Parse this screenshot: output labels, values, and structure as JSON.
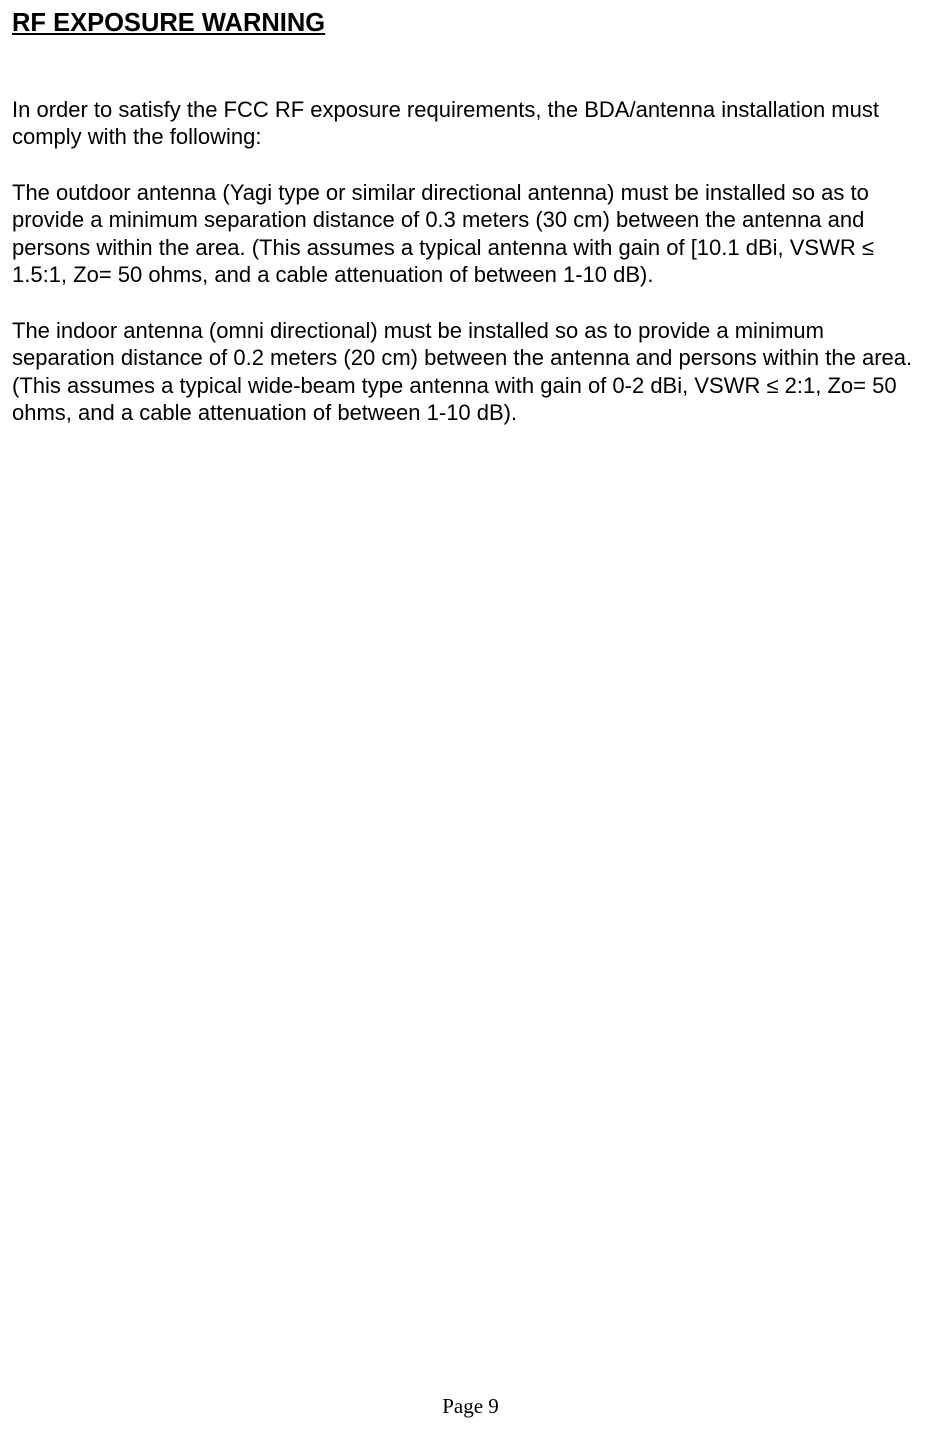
{
  "heading": "RF EXPOSURE WARNING",
  "paragraphs": {
    "p1": "In order to satisfy the FCC RF exposure requirements, the BDA/antenna installation must comply with the following:",
    "p2": "The outdoor antenna (Yagi type or similar directional antenna) must be installed so as to provide a minimum separation distance of 0.3 meters (30 cm) between the antenna and persons within the area. (This assumes a typical antenna with gain of [10.1 dBi, VSWR ≤ 1.5:1, Zo= 50 ohms, and a cable attenuation of between 1-10 dB).",
    "p3": "The indoor antenna (omni directional) must be installed so as to provide a minimum separation distance of 0.2 meters (20 cm) between the antenna and persons within the area. (This assumes a typical wide-beam type antenna with gain of 0-2 dBi, VSWR ≤ 2:1, Zo= 50 ohms, and a cable attenuation of between 1-10 dB)."
  },
  "footer": "Page 9"
}
